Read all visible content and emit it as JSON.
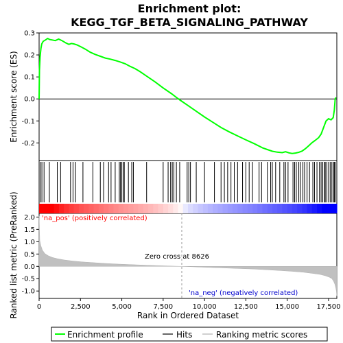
{
  "chart_data": {
    "type": "line",
    "title": "Enrichment plot:\nKEGG_TGF_BETA_SIGNALING_PATHWAY",
    "title_lines": [
      "Enrichment plot:",
      "KEGG_TGF_BETA_SIGNALING_PATHWAY"
    ],
    "xlabel": "Rank in Ordered Dataset",
    "xlim": [
      0,
      18000
    ],
    "x_ticks": [
      0,
      2500,
      5000,
      7500,
      10000,
      12500,
      15000,
      17500
    ],
    "x_tick_labels": [
      "0",
      "2,500",
      "5,000",
      "7,500",
      "10,000",
      "12,500",
      "15,000",
      "17,500"
    ],
    "panels": {
      "es": {
        "ylabel": "Enrichment score (ES)",
        "ylim": [
          -0.28,
          0.3
        ],
        "y_ticks": [
          0.3,
          0.2,
          0.1,
          0.0,
          -0.1,
          -0.2
        ],
        "y_tick_labels": [
          "0.3",
          "0.2",
          "0.1",
          "0.0",
          "-0.1",
          "-0.2"
        ],
        "color": "#00ff00"
      },
      "metric": {
        "ylabel": "Ranked list metric (PreRanked)",
        "ylim": [
          -1.3,
          2.15
        ],
        "y_ticks": [
          2.0,
          1.5,
          1.0,
          0.5,
          0.0,
          -0.5,
          -1.0
        ],
        "y_tick_labels": [
          "2.0",
          "1.5",
          "1.0",
          "0.5",
          "0.0",
          "-0.5",
          "-1.0"
        ],
        "color": "#c0c0c0"
      }
    },
    "series": [
      {
        "name": "Enrichment profile",
        "x": [
          0,
          20,
          60,
          110,
          160,
          250,
          380,
          520,
          640,
          800,
          980,
          1180,
          1380,
          1600,
          1800,
          1950,
          2100,
          2300,
          2550,
          2800,
          3100,
          3400,
          3700,
          4000,
          4300,
          4600,
          4900,
          5200,
          5500,
          5800,
          6100,
          6500,
          7000,
          7500,
          8000,
          8500,
          9000,
          9500,
          10000,
          10500,
          11000,
          11500,
          12000,
          12500,
          13000,
          13500,
          13800,
          14100,
          14400,
          14700,
          14900,
          15100,
          15300,
          15500,
          15700,
          15900,
          16100,
          16300,
          16500,
          16700,
          16900,
          17050,
          17200,
          17350,
          17500,
          17650,
          17780,
          17850,
          17900,
          17950
        ],
        "y": [
          0.0,
          0.13,
          0.19,
          0.23,
          0.25,
          0.262,
          0.268,
          0.275,
          0.27,
          0.268,
          0.265,
          0.272,
          0.265,
          0.255,
          0.248,
          0.252,
          0.25,
          0.245,
          0.236,
          0.226,
          0.212,
          0.202,
          0.194,
          0.186,
          0.181,
          0.175,
          0.168,
          0.16,
          0.148,
          0.138,
          0.124,
          0.104,
          0.078,
          0.05,
          0.024,
          -0.004,
          -0.03,
          -0.056,
          -0.082,
          -0.106,
          -0.13,
          -0.15,
          -0.168,
          -0.186,
          -0.203,
          -0.222,
          -0.23,
          -0.238,
          -0.242,
          -0.244,
          -0.24,
          -0.245,
          -0.248,
          -0.246,
          -0.243,
          -0.237,
          -0.226,
          -0.213,
          -0.199,
          -0.188,
          -0.176,
          -0.16,
          -0.13,
          -0.1,
          -0.09,
          -0.095,
          -0.085,
          -0.05,
          0.0,
          0.007
        ]
      },
      {
        "name": "Hits",
        "x": [
          80,
          170,
          300,
          620,
          1100,
          1300,
          1900,
          2050,
          2200,
          2650,
          3250,
          3700,
          3900,
          4200,
          4350,
          4600,
          4850,
          4920,
          5000,
          5080,
          5150,
          5400,
          5600,
          5700,
          6500,
          7500,
          7800,
          7950,
          8050,
          8150,
          8300,
          8500,
          8950,
          9050,
          9150,
          9500,
          10000,
          10600,
          11000,
          11200,
          11400,
          11600,
          11800,
          12000,
          12300,
          12500,
          12700,
          12900,
          13300,
          13450,
          13800,
          14000,
          14100,
          14300,
          14550,
          14800,
          14900,
          15050,
          15350,
          15450,
          15550,
          15700,
          15800,
          15950,
          16050,
          16200,
          16350,
          16550,
          16650,
          16800,
          16950,
          17050,
          17150,
          17250,
          17300,
          17400,
          17500,
          17600,
          17700,
          17800,
          17850,
          17900
        ]
      },
      {
        "name": "Ranking metric scores",
        "x": [
          0,
          40,
          100,
          200,
          350,
          550,
          800,
          1100,
          1500,
          2000,
          2600,
          3300,
          4000,
          4800,
          5600,
          6400,
          7200,
          7800,
          8300,
          8626,
          9000,
          9800,
          10600,
          11400,
          12200,
          13000,
          13800,
          14600,
          15300,
          16000,
          16600,
          17000,
          17300,
          17550,
          17700,
          17800,
          17880,
          17930,
          17970,
          18000
        ],
        "y": [
          2.05,
          1.05,
          0.85,
          0.66,
          0.52,
          0.43,
          0.36,
          0.31,
          0.26,
          0.22,
          0.18,
          0.15,
          0.12,
          0.09,
          0.07,
          0.05,
          0.03,
          0.015,
          0.005,
          0.0,
          -0.01,
          -0.03,
          -0.05,
          -0.07,
          -0.09,
          -0.11,
          -0.14,
          -0.17,
          -0.2,
          -0.24,
          -0.29,
          -0.33,
          -0.38,
          -0.44,
          -0.5,
          -0.6,
          -0.72,
          -0.85,
          -1.0,
          -1.2
        ]
      }
    ],
    "annotations": {
      "pos_label": "'na_pos' (positively correlated)",
      "neg_label": "'na_neg' (negatively correlated)",
      "zero_cross": "Zero cross at 8626",
      "zero_cross_x": 8626
    },
    "legend": {
      "placement": "bottom",
      "entries": [
        "Enrichment profile",
        "Hits",
        "Ranking metric scores"
      ]
    },
    "colors": {
      "enrichment": "#00ff00",
      "hits": "#000000",
      "metric": "#c0c0c0",
      "pos_label": "#ff0000",
      "neg_label": "#0000cc",
      "heat_pos": "#ff0000",
      "heat_neg": "#0000ff"
    }
  }
}
